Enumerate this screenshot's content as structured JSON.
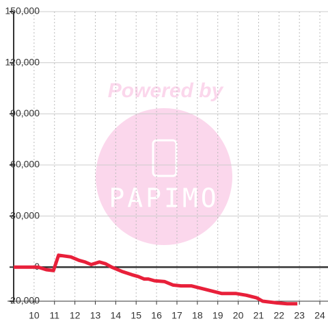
{
  "chart_data": {
    "type": "line",
    "watermark": {
      "top": "Powered by",
      "logo": "PAPIMO"
    },
    "x": [
      9.0,
      10.2,
      10.6,
      10.95,
      11.2,
      11.8,
      12.2,
      12.5,
      12.8,
      13.2,
      13.5,
      13.8,
      14.3,
      14.8,
      15.1,
      15.4,
      15.6,
      15.9,
      16.4,
      16.8,
      17.2,
      17.7,
      18.2,
      18.7,
      19.2,
      19.9,
      20.4,
      20.9,
      21.2,
      21.9,
      22.4,
      22.9
    ],
    "series": [
      {
        "color": "#e8203a",
        "values": [
          0,
          0,
          -1500,
          -2000,
          7000,
          6000,
          4000,
          3000,
          1500,
          3000,
          2000,
          0,
          -2500,
          -4500,
          -5500,
          -7000,
          -7000,
          -8000,
          -8500,
          -10500,
          -11000,
          -11000,
          -12500,
          -14000,
          -15500,
          -15500,
          -16500,
          -18000,
          -20000,
          -21000,
          -21500,
          -21500
        ]
      }
    ],
    "xlim": [
      9,
      24.4
    ],
    "xticks": [
      10,
      11,
      12,
      13,
      14,
      15,
      16,
      17,
      18,
      19,
      20,
      21,
      22,
      23,
      24
    ],
    "ylim": [
      -20000,
      150000
    ],
    "yticks": [
      {
        "value": -20000,
        "label": "-20,000"
      },
      0,
      {
        "value": 30000,
        "label": "30,000"
      },
      {
        "value": 60000,
        "label": "60,000"
      },
      {
        "value": 90000,
        "label": "90,000"
      },
      {
        "value": 120000,
        "label": "120,000"
      },
      {
        "value": 150000,
        "label": "150,000"
      }
    ],
    "grid": true
  }
}
